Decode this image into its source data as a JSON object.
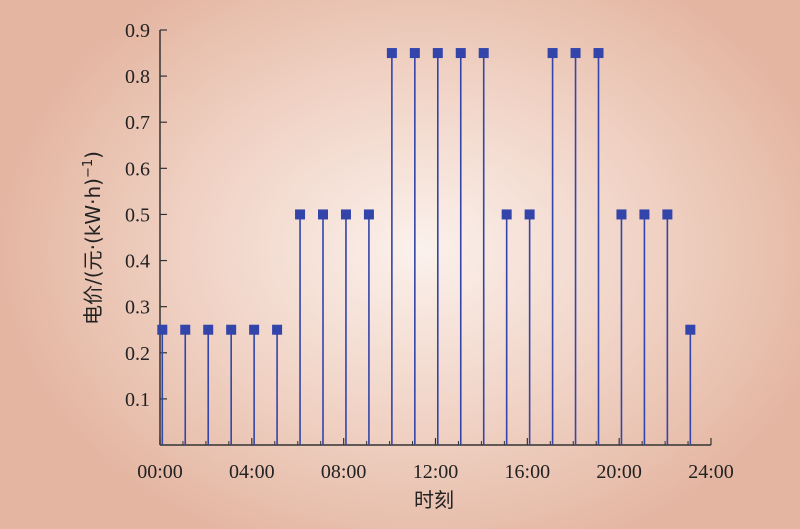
{
  "chart_data": {
    "type": "stem",
    "xlabel": "时刻",
    "ylabel": "电价/(元·(kW·h)",
    "ylabel_superscript": "−1",
    "ylabel_close": ")",
    "xlim": [
      0,
      24
    ],
    "ylim": [
      0,
      0.9
    ],
    "x_ticks": [
      0,
      4,
      8,
      12,
      16,
      20,
      24
    ],
    "x_tick_labels": [
      "00:00",
      "04:00",
      "08:00",
      "12:00",
      "16:00",
      "20:00",
      "24:00"
    ],
    "y_ticks": [
      0.1,
      0.2,
      0.3,
      0.4,
      0.5,
      0.6,
      0.7,
      0.8,
      0.9
    ],
    "y_tick_labels": [
      "0.1",
      "0.2",
      "0.3",
      "0.4",
      "0.5",
      "0.6",
      "0.7",
      "0.8",
      "0.9"
    ],
    "x": [
      1,
      2,
      3,
      4,
      5,
      6,
      7,
      8,
      9,
      10,
      11,
      12,
      13,
      14,
      15,
      16,
      17,
      18,
      19,
      20,
      21,
      22,
      23,
      24
    ],
    "values": [
      0.25,
      0.25,
      0.25,
      0.25,
      0.25,
      0.25,
      0.5,
      0.5,
      0.5,
      0.5,
      0.85,
      0.85,
      0.85,
      0.85,
      0.85,
      0.5,
      0.5,
      0.85,
      0.85,
      0.85,
      0.5,
      0.5,
      0.5,
      0.25
    ],
    "x_values_note_hours": true,
    "grid": false,
    "colors": {
      "series": "#3344aa",
      "axis": "#333333"
    }
  }
}
